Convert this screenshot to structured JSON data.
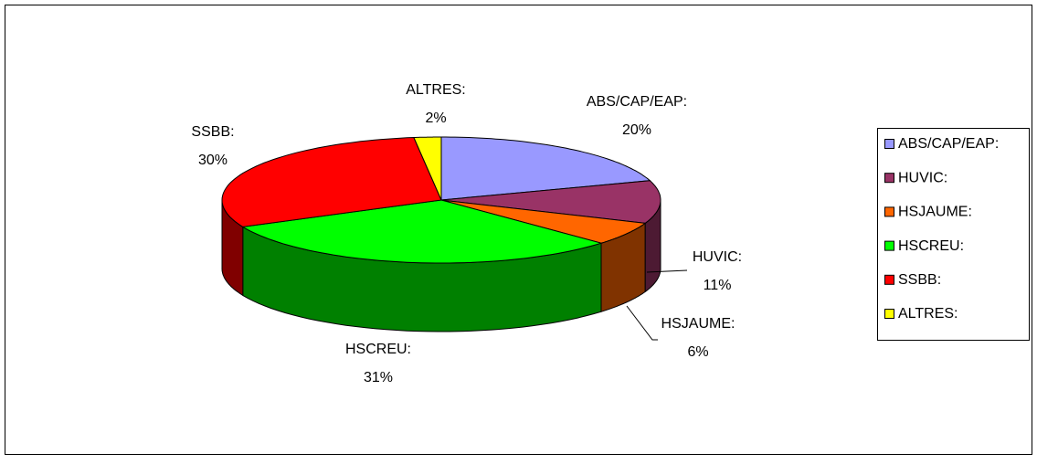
{
  "chart_data": {
    "type": "pie3d",
    "categories": [
      "ABS/CAP/EAP:",
      "HUVIC:",
      "HSJAUME:",
      "HSCREU:",
      "SSBB:",
      "ALTRES:"
    ],
    "values": [
      20,
      11,
      6,
      31,
      30,
      2
    ],
    "value_labels": [
      "20%",
      "11%",
      "6%",
      "31%",
      "30%",
      "2%"
    ],
    "colors": [
      "#9999ff",
      "#993366",
      "#ff6600",
      "#00ff00",
      "#ff0000",
      "#ffff00"
    ],
    "legend": "right"
  }
}
